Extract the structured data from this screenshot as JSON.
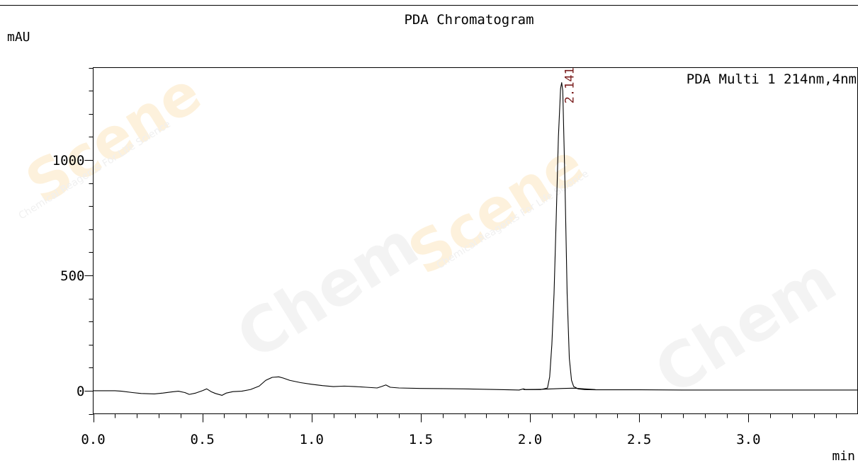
{
  "chart_data": {
    "type": "line",
    "title": "PDA  Chromatogram",
    "ylabel": "mAU",
    "xlabel": "min",
    "xlim": [
      0.0,
      3.5
    ],
    "ylim": [
      -100,
      1400
    ],
    "x_ticks": [
      0.0,
      0.5,
      1.0,
      1.5,
      2.0,
      2.5,
      3.0
    ],
    "x_tick_labels": [
      "0.0",
      "0.5",
      "1.0",
      "1.5",
      "2.0",
      "2.5",
      "3.0"
    ],
    "x_minor_step": 0.1,
    "y_ticks": [
      0,
      500,
      1000
    ],
    "y_tick_labels": [
      "0",
      "500",
      "1000"
    ],
    "y_minor_step": 100,
    "grid": false,
    "legend": {
      "text": "PDA Multi 1 214nm,4nm",
      "position": "top-right"
    },
    "annotations": [
      {
        "text": "2.141",
        "x": 2.141,
        "y": 1330
      }
    ],
    "series": [
      {
        "x": [
          0.0,
          0.1,
          0.13,
          0.18,
          0.22,
          0.28,
          0.32,
          0.36,
          0.39,
          0.42,
          0.44,
          0.47,
          0.5,
          0.52,
          0.54,
          0.56,
          0.59,
          0.61,
          0.64,
          0.68,
          0.72,
          0.76,
          0.79,
          0.82,
          0.85,
          0.87,
          0.9,
          0.95,
          1.0,
          1.05,
          1.1,
          1.15,
          1.2,
          1.25,
          1.3,
          1.32,
          1.34,
          1.36,
          1.4,
          1.5,
          1.6,
          1.7,
          1.8,
          1.9,
          1.95,
          1.97,
          1.98,
          2.0,
          2.05,
          2.08,
          2.09,
          2.1,
          2.11,
          2.12,
          2.13,
          2.14,
          2.145,
          2.15,
          2.16,
          2.17,
          2.18,
          2.19,
          2.2,
          2.22,
          2.25,
          2.3,
          2.4,
          2.5,
          2.7,
          3.0,
          3.3,
          3.5
        ],
        "y": [
          0,
          0,
          -2,
          -8,
          -12,
          -14,
          -10,
          -5,
          -2,
          -8,
          -16,
          -10,
          0,
          8,
          -4,
          -12,
          -20,
          -10,
          -4,
          -2,
          5,
          20,
          45,
          58,
          60,
          55,
          45,
          35,
          28,
          22,
          18,
          20,
          18,
          15,
          12,
          18,
          25,
          15,
          12,
          10,
          9,
          8,
          6,
          4,
          3,
          8,
          5,
          5,
          5,
          12,
          60,
          200,
          420,
          750,
          1100,
          1310,
          1335,
          1300,
          900,
          420,
          140,
          45,
          18,
          8,
          5,
          4,
          4,
          4,
          3,
          3,
          3,
          3
        ]
      },
      {
        "x": [
          1.97,
          2.05,
          2.1,
          2.15,
          2.2,
          2.25,
          2.3
        ],
        "y": [
          5,
          6,
          8,
          10,
          11,
          8,
          5
        ]
      }
    ]
  }
}
